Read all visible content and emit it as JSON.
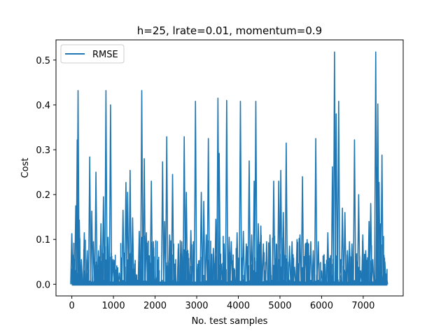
{
  "chart_data": {
    "type": "line",
    "title": "h=25, lrate=0.01, momentum=0.9",
    "xlabel": "No. test samples",
    "ylabel": "Cost",
    "xlim": [
      -380,
      7960
    ],
    "ylim": [
      -0.026,
      0.545
    ],
    "xticks": [
      0,
      1000,
      2000,
      3000,
      4000,
      5000,
      6000,
      7000
    ],
    "yticks": [
      0.0,
      0.1,
      0.2,
      0.3,
      0.4,
      0.5
    ],
    "xtick_labels": [
      "0",
      "1000",
      "2000",
      "3000",
      "4000",
      "5000",
      "6000",
      "7000"
    ],
    "ytick_labels": [
      "0.0",
      "0.1",
      "0.2",
      "0.3",
      "0.4",
      "0.5"
    ],
    "grid": false,
    "legend_position": "top-left",
    "series": [
      {
        "name": "RMSE",
        "color": "#1f77b4",
        "x_range": [
          0,
          7580
        ],
        "baseline": 0.0,
        "spikes": [
          [
            0,
            0.113
          ],
          [
            40,
            0.065
          ],
          [
            95,
            0.175
          ],
          [
            130,
            0.322
          ],
          [
            150,
            0.432
          ],
          [
            180,
            0.143
          ],
          [
            230,
            0.055
          ],
          [
            300,
            0.115
          ],
          [
            370,
            0.075
          ],
          [
            430,
            0.284
          ],
          [
            480,
            0.163
          ],
          [
            520,
            0.095
          ],
          [
            580,
            0.25
          ],
          [
            640,
            0.075
          ],
          [
            700,
            0.135
          ],
          [
            760,
            0.195
          ],
          [
            820,
            0.432
          ],
          [
            870,
            0.105
          ],
          [
            930,
            0.4
          ],
          [
            990,
            0.055
          ],
          [
            1070,
            0.032
          ],
          [
            1140,
            0.025
          ],
          [
            1230,
            0.165
          ],
          [
            1300,
            0.227
          ],
          [
            1340,
            0.205
          ],
          [
            1400,
            0.254
          ],
          [
            1460,
            0.148
          ],
          [
            1530,
            0.023
          ],
          [
            1620,
            0.118
          ],
          [
            1680,
            0.432
          ],
          [
            1740,
            0.28
          ],
          [
            1790,
            0.115
          ],
          [
            1850,
            0.045
          ],
          [
            1910,
            0.23
          ],
          [
            1960,
            0.095
          ],
          [
            2020,
            0.015
          ],
          [
            2070,
            0.045
          ],
          [
            2180,
            0.273
          ],
          [
            2230,
            0.14
          ],
          [
            2280,
            0.329
          ],
          [
            2350,
            0.11
          ],
          [
            2420,
            0.245
          ],
          [
            2480,
            0.035
          ],
          [
            2560,
            0.09
          ],
          [
            2640,
            0.095
          ],
          [
            2700,
            0.329
          ],
          [
            2750,
            0.205
          ],
          [
            2800,
            0.045
          ],
          [
            2860,
            0.12
          ],
          [
            2920,
            0.095
          ],
          [
            2970,
            0.408
          ],
          [
            3030,
            0.045
          ],
          [
            3110,
            0.205
          ],
          [
            3170,
            0.185
          ],
          [
            3230,
            0.11
          ],
          [
            3280,
            0.325
          ],
          [
            3340,
            0.055
          ],
          [
            3400,
            0.08
          ],
          [
            3460,
            0.145
          ],
          [
            3510,
            0.415
          ],
          [
            3540,
            0.292
          ],
          [
            3590,
            0.045
          ],
          [
            3660,
            0.09
          ],
          [
            3720,
            0.41
          ],
          [
            3780,
            0.105
          ],
          [
            3830,
            0.095
          ],
          [
            3900,
            0.035
          ],
          [
            3970,
            0.115
          ],
          [
            4050,
            0.408
          ],
          [
            4120,
            0.118
          ],
          [
            4190,
            0.09
          ],
          [
            4260,
            0.275
          ],
          [
            4320,
            0.11
          ],
          [
            4380,
            0.23
          ],
          [
            4420,
            0.408
          ],
          [
            4480,
            0.135
          ],
          [
            4540,
            0.13
          ],
          [
            4600,
            0.09
          ],
          [
            4680,
            0.095
          ],
          [
            4760,
            0.11
          ],
          [
            4850,
            0.23
          ],
          [
            4910,
            0.09
          ],
          [
            4970,
            0.23
          ],
          [
            5020,
            0.254
          ],
          [
            5080,
            0.16
          ],
          [
            5150,
            0.315
          ],
          [
            5230,
            0.085
          ],
          [
            5290,
            0.095
          ],
          [
            5350,
            0.038
          ],
          [
            5410,
            0.1
          ],
          [
            5480,
            0.11
          ],
          [
            5540,
            0.24
          ],
          [
            5610,
            0.09
          ],
          [
            5680,
            0.09
          ],
          [
            5740,
            0.095
          ],
          [
            5800,
            0.075
          ],
          [
            5860,
            0.325
          ],
          [
            5920,
            0.095
          ],
          [
            6000,
            0.03
          ],
          [
            6080,
            0.045
          ],
          [
            6150,
            0.115
          ],
          [
            6210,
            0.045
          ],
          [
            6260,
            0.262
          ],
          [
            6310,
            0.518
          ],
          [
            6350,
            0.38
          ],
          [
            6410,
            0.408
          ],
          [
            6460,
            0.055
          ],
          [
            6500,
            0.17
          ],
          [
            6560,
            0.16
          ],
          [
            6620,
            0.075
          ],
          [
            6670,
            0.095
          ],
          [
            6730,
            0.09
          ],
          [
            6790,
            0.322
          ],
          [
            6850,
            0.05
          ],
          [
            6890,
            0.2
          ],
          [
            6940,
            0.03
          ],
          [
            6990,
            0.11
          ],
          [
            7060,
            0.075
          ],
          [
            7140,
            0.14
          ],
          [
            7180,
            0.18
          ],
          [
            7230,
            0.055
          ],
          [
            7300,
            0.518
          ],
          [
            7330,
            0.26
          ],
          [
            7350,
            0.402
          ],
          [
            7380,
            0.227
          ],
          [
            7420,
            0.135
          ],
          [
            7450,
            0.288
          ],
          [
            7480,
            0.025
          ],
          [
            7520,
            0.05
          ],
          [
            7560,
            0.015
          ]
        ]
      }
    ],
    "data_note_none": ""
  },
  "legend": {
    "label": "RMSE"
  }
}
